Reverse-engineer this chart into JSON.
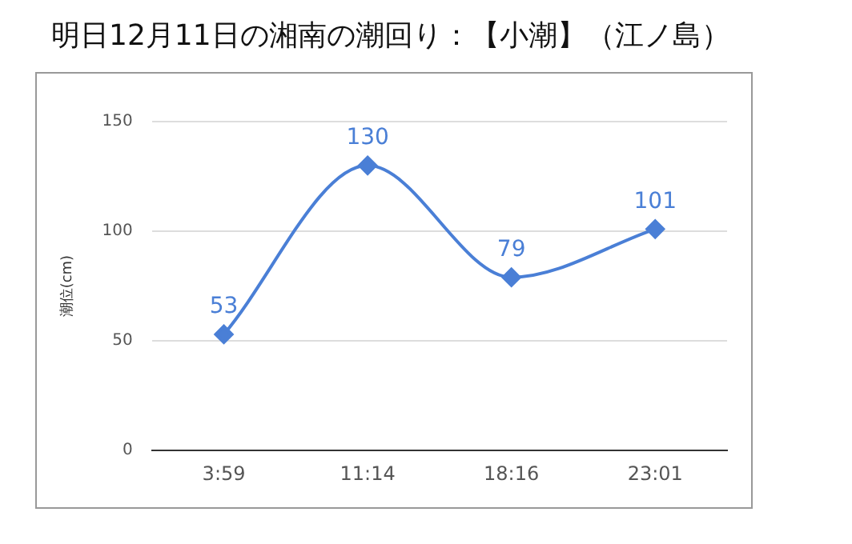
{
  "chart_data": {
    "type": "line",
    "title": "明日12月11日の湘南の潮回り：【小潮】（江ノ島）",
    "ylabel": "潮位(cm)",
    "categories": [
      "3:59",
      "11:14",
      "18:16",
      "23:01"
    ],
    "series": [
      {
        "color": "#4a7fd6",
        "values": [
          53,
          130,
          79,
          101
        ]
      }
    ],
    "ylim": [
      0,
      150
    ],
    "yticks": [
      0,
      50,
      100,
      150
    ],
    "grid": "y",
    "marker": "diamond",
    "line_style": "solid",
    "data_labels": true,
    "legend": false
  }
}
